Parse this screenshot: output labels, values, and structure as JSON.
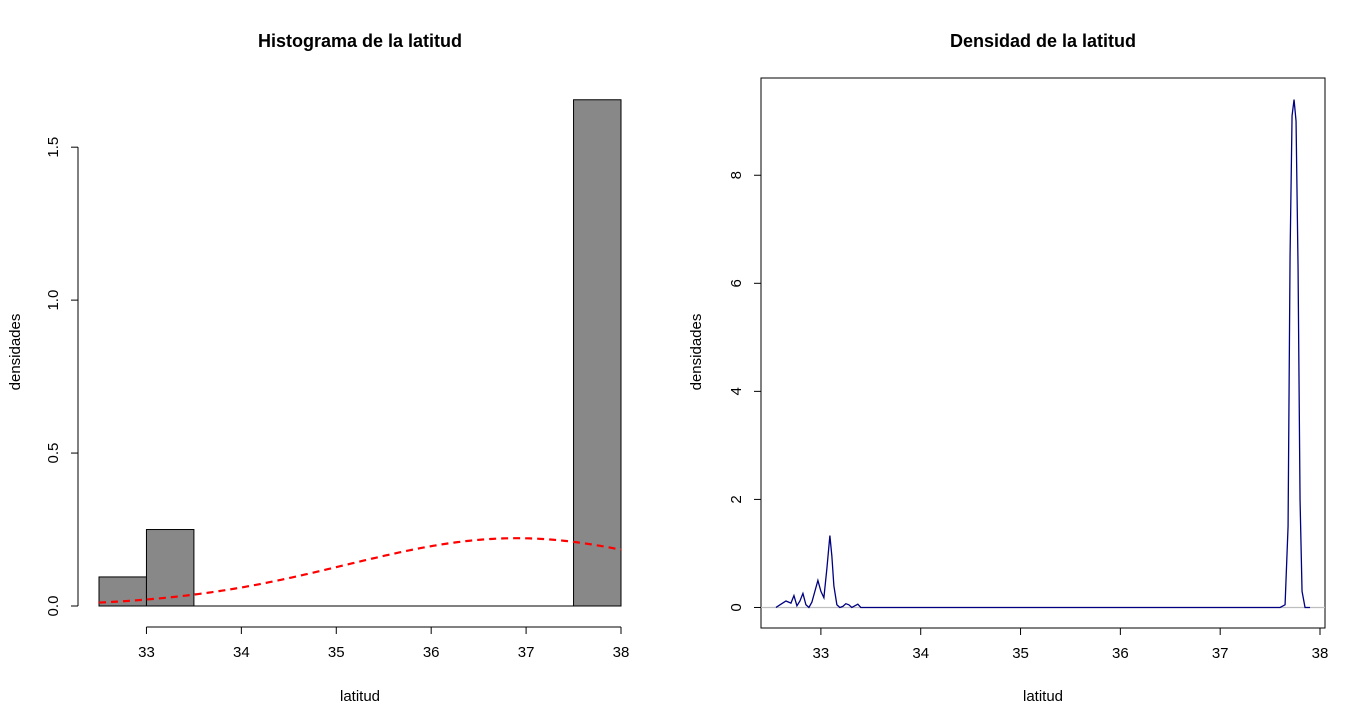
{
  "chart_data": [
    {
      "type": "histogram",
      "title": "Histograma de la latitud",
      "xlabel": "latitud",
      "ylabel": "densidades",
      "xlim": [
        32.5,
        38
      ],
      "ylim": [
        0,
        1.7
      ],
      "xticks": [
        "33",
        "34",
        "35",
        "36",
        "37",
        "38"
      ],
      "yticks": [
        "0.0",
        "0.5",
        "1.0",
        "1.5"
      ],
      "bins": [
        {
          "x0": 32.5,
          "x1": 33.0,
          "density": 0.095
        },
        {
          "x0": 33.0,
          "x1": 33.5,
          "density": 0.25
        },
        {
          "x0": 33.5,
          "x1": 34.0,
          "density": 0.0
        },
        {
          "x0": 34.0,
          "x1": 34.5,
          "density": 0.0
        },
        {
          "x0": 34.5,
          "x1": 35.0,
          "density": 0.0
        },
        {
          "x0": 35.0,
          "x1": 35.5,
          "density": 0.0
        },
        {
          "x0": 35.5,
          "x1": 36.0,
          "density": 0.0
        },
        {
          "x0": 36.0,
          "x1": 36.5,
          "density": 0.0
        },
        {
          "x0": 36.5,
          "x1": 37.0,
          "density": 0.0
        },
        {
          "x0": 37.0,
          "x1": 37.5,
          "density": 0.0
        },
        {
          "x0": 37.5,
          "x1": 38.0,
          "density": 1.655
        }
      ],
      "bar_color": "#888888",
      "normal_curve": {
        "mean": 36.9,
        "sd": 1.8,
        "color": "#ff0000",
        "style": "dashed"
      }
    },
    {
      "type": "line",
      "title": "Densidad de la latitud",
      "xlabel": "latitud",
      "ylabel": "densidades",
      "xlim": [
        32.4,
        38.05
      ],
      "ylim": [
        -0.38,
        9.8
      ],
      "xticks": [
        "33",
        "34",
        "35",
        "36",
        "37",
        "38"
      ],
      "yticks": [
        "0",
        "2",
        "4",
        "6",
        "8"
      ],
      "line_color": "#000080",
      "baseline_color": "#bebebe",
      "x": [
        32.55,
        32.6,
        32.65,
        32.7,
        32.73,
        32.76,
        32.79,
        32.82,
        32.85,
        32.88,
        32.91,
        32.94,
        32.97,
        33.0,
        33.03,
        33.06,
        33.09,
        33.11,
        33.13,
        33.16,
        33.19,
        33.22,
        33.25,
        33.28,
        33.31,
        33.34,
        33.37,
        33.4,
        37.6,
        37.65,
        37.68,
        37.7,
        37.72,
        37.74,
        37.76,
        37.78,
        37.8,
        37.82,
        37.85,
        37.9
      ],
      "y": [
        0.0,
        0.06,
        0.12,
        0.08,
        0.22,
        0.03,
        0.12,
        0.26,
        0.05,
        0.0,
        0.1,
        0.3,
        0.5,
        0.3,
        0.18,
        0.72,
        1.33,
        0.95,
        0.4,
        0.05,
        0.0,
        0.02,
        0.07,
        0.05,
        0.0,
        0.03,
        0.06,
        0.0,
        0.0,
        0.05,
        1.5,
        6.5,
        9.1,
        9.4,
        9.0,
        6.3,
        2.0,
        0.3,
        0.0,
        0.0
      ]
    }
  ]
}
